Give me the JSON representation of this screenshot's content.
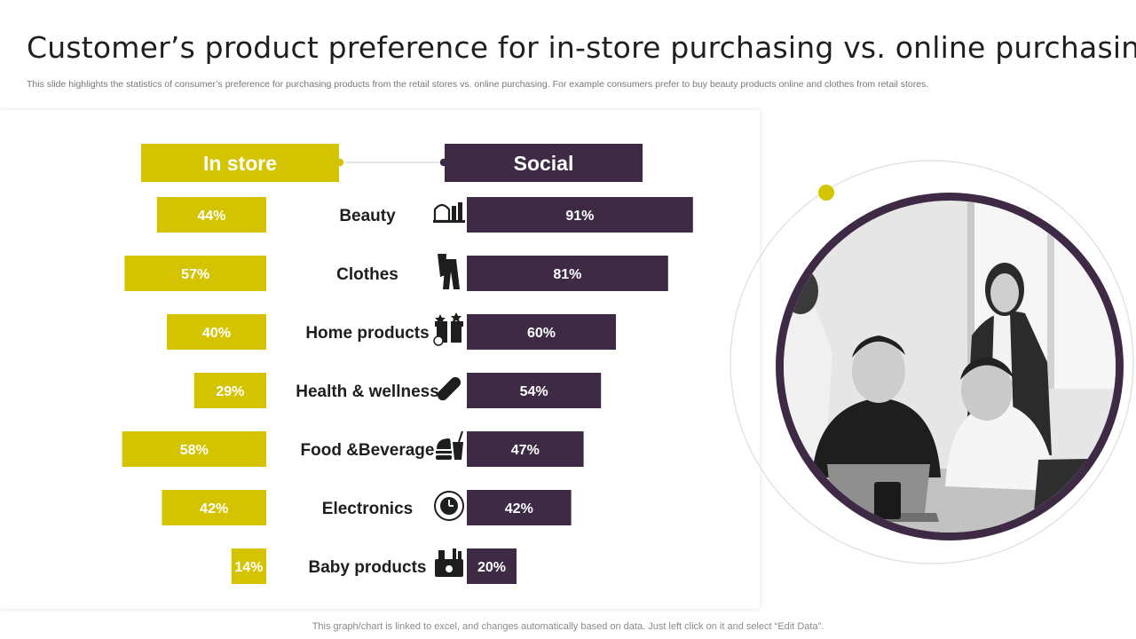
{
  "header": {
    "title": "Customer’s product preference for in-store purchasing vs. online purchasing",
    "subtitle": "This slide highlights the statistics of consumer’s preference for purchasing products from the retail stores vs. online purchasing. For example consumers prefer to buy beauty products online and clothes from retail stores."
  },
  "footer": {
    "note": "This graph/chart is linked to excel,  and changes automatically based on data. Just left click on it and select “Edit Data”."
  },
  "colors": {
    "in_store": "#d4c400",
    "social": "#3e2a45",
    "connector": "#cccccc"
  },
  "chart_data": {
    "type": "bar",
    "categories": [
      "Beauty",
      "Clothes",
      "Home products",
      "Health & wellness",
      "Food &Beverage",
      "Electronics",
      "Baby products"
    ],
    "icons": [
      "makeup-icon",
      "clothes-icon",
      "gift-box-icon",
      "pill-icon",
      "food-drink-icon",
      "clock-icon",
      "baby-care-icon"
    ],
    "series": [
      {
        "name": "In store",
        "values": [
          44,
          57,
          40,
          29,
          58,
          42,
          14
        ],
        "labels": [
          "44%",
          "57%",
          "40%",
          "29%",
          "58%",
          "42%",
          "14%"
        ]
      },
      {
        "name": "Social",
        "values": [
          91,
          81,
          60,
          54,
          47,
          42,
          20
        ],
        "labels": [
          "91%",
          "81%",
          "60%",
          "54%",
          "47%",
          "42%",
          "20%"
        ]
      }
    ],
    "xlim": [
      0,
      100
    ],
    "grid": false,
    "legend": "top"
  }
}
